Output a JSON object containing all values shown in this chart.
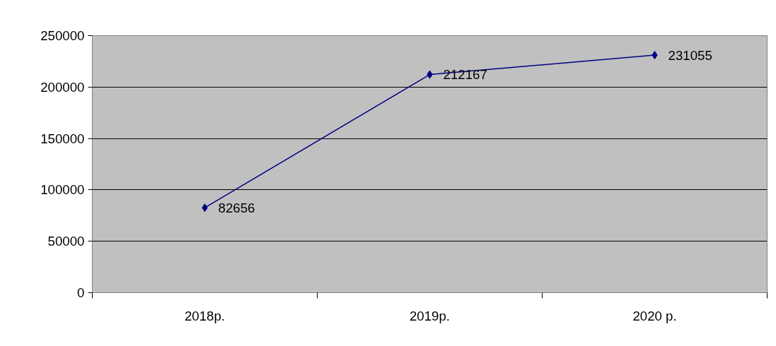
{
  "chart_data": {
    "type": "line",
    "categories": [
      "2018р.",
      "2019р.",
      "2020 р."
    ],
    "series": [
      {
        "color": "#000080",
        "values": [
          82656,
          212167,
          231055
        ]
      }
    ],
    "ylim": [
      0,
      250000
    ],
    "yticks": [
      0,
      50000,
      100000,
      150000,
      200000,
      250000
    ],
    "grid": "y",
    "marker": "diamond",
    "line_style": "solid",
    "data_labels": true
  }
}
